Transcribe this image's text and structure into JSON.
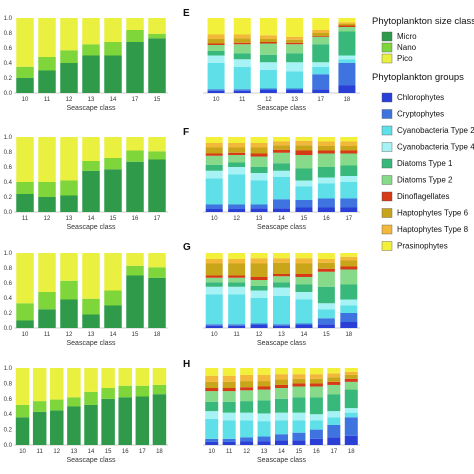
{
  "size_legend": {
    "title": "Phytoplankton size class",
    "items": [
      {
        "name": "Micro",
        "color": "#2e9a4a"
      },
      {
        "name": "Nano",
        "color": "#7fd63a"
      },
      {
        "name": "Pico",
        "color": "#eaf040"
      }
    ]
  },
  "group_legend": {
    "title": "Phytoplankton groups",
    "items": [
      {
        "name": "Chlorophytes",
        "color": "#2a3fd6"
      },
      {
        "name": "Cryptophytes",
        "color": "#3f73e0"
      },
      {
        "name": "Cyanobacteria Type 2",
        "color": "#5fe0e8"
      },
      {
        "name": "Cyanobacteria Type 4",
        "color": "#a6f2f4"
      },
      {
        "name": "Diatoms Type 1",
        "color": "#38b87a"
      },
      {
        "name": "Diatoms Type 2",
        "color": "#86da8a"
      },
      {
        "name": "Dinoflagellates",
        "color": "#d63a17"
      },
      {
        "name": "Haptophytes Type 6",
        "color": "#c9a51a"
      },
      {
        "name": "Haptophytes Type 8",
        "color": "#f2b83a"
      },
      {
        "name": "Prasinophytes",
        "color": "#f2f03a"
      }
    ]
  },
  "chart_data": [
    {
      "type": "bar",
      "stacked": true,
      "panel": "",
      "categories": [
        "10",
        "11",
        "12",
        "13",
        "14",
        "17",
        "15"
      ],
      "xlabel": "Seascape class",
      "ylim": [
        0,
        1
      ],
      "yticks": [
        "0.0",
        "0.2",
        "0.4",
        "0.6",
        "0.8",
        "1.0"
      ],
      "series": [
        {
          "name": "Micro",
          "values": [
            0.2,
            0.3,
            0.4,
            0.5,
            0.5,
            0.68,
            0.73
          ]
        },
        {
          "name": "Nano",
          "values": [
            0.15,
            0.18,
            0.17,
            0.15,
            0.18,
            0.16,
            0.06
          ]
        },
        {
          "name": "Pico",
          "values": [
            0.65,
            0.52,
            0.43,
            0.35,
            0.32,
            0.16,
            0.21
          ]
        }
      ]
    },
    {
      "type": "bar",
      "stacked": true,
      "panel": "",
      "categories": [
        "11",
        "12",
        "13",
        "14",
        "15",
        "16",
        "17"
      ],
      "xlabel": "Seascape class",
      "ylim": [
        0,
        1
      ],
      "yticks": [
        "0.0",
        "0.2",
        "0.4",
        "0.6",
        "0.8",
        "1.0"
      ],
      "series": [
        {
          "name": "Micro",
          "values": [
            0.24,
            0.2,
            0.22,
            0.55,
            0.57,
            0.67,
            0.7
          ]
        },
        {
          "name": "Nano",
          "values": [
            0.16,
            0.2,
            0.2,
            0.13,
            0.15,
            0.15,
            0.11
          ]
        },
        {
          "name": "Pico",
          "values": [
            0.6,
            0.6,
            0.58,
            0.32,
            0.28,
            0.18,
            0.19
          ]
        }
      ]
    },
    {
      "type": "bar",
      "stacked": true,
      "panel": "",
      "categories": [
        "10",
        "11",
        "12",
        "13",
        "14",
        "15",
        "18"
      ],
      "xlabel": "Seascape class",
      "ylim": [
        0,
        1
      ],
      "yticks": [
        "0.0",
        "0.2",
        "0.4",
        "0.6",
        "0.8",
        "1.0"
      ],
      "series": [
        {
          "name": "Micro",
          "values": [
            0.1,
            0.25,
            0.38,
            0.18,
            0.3,
            0.7,
            0.67
          ]
        },
        {
          "name": "Nano",
          "values": [
            0.23,
            0.23,
            0.25,
            0.21,
            0.2,
            0.13,
            0.14
          ]
        },
        {
          "name": "Pico",
          "values": [
            0.67,
            0.52,
            0.37,
            0.61,
            0.5,
            0.17,
            0.19
          ]
        }
      ]
    },
    {
      "type": "bar",
      "stacked": true,
      "panel": "",
      "categories": [
        "10",
        "11",
        "12",
        "13",
        "14",
        "15",
        "16",
        "17",
        "18"
      ],
      "xlabel": "Seascape class",
      "ylim": [
        0,
        1
      ],
      "yticks": [
        "0.0",
        "0.2",
        "0.4",
        "0.6",
        "0.8",
        "1.0"
      ],
      "series": [
        {
          "name": "Micro",
          "values": [
            0.36,
            0.43,
            0.45,
            0.5,
            0.52,
            0.6,
            0.62,
            0.63,
            0.66
          ]
        },
        {
          "name": "Nano",
          "values": [
            0.16,
            0.14,
            0.14,
            0.12,
            0.17,
            0.14,
            0.15,
            0.14,
            0.12
          ]
        },
        {
          "name": "Pico",
          "values": [
            0.48,
            0.43,
            0.41,
            0.38,
            0.31,
            0.26,
            0.23,
            0.23,
            0.22
          ]
        }
      ]
    },
    {
      "type": "bar",
      "stacked": true,
      "panel": "E",
      "categories": [
        "10",
        "11",
        "12",
        "13",
        "17",
        "18"
      ],
      "xlabel": "Seascape class",
      "ylim": [
        0,
        1
      ],
      "yticks": [],
      "series": [
        {
          "name": "Chlorophytes",
          "values": [
            0.03,
            0.03,
            0.04,
            0.04,
            0.05,
            0.1
          ]
        },
        {
          "name": "Cryptophytes",
          "values": [
            0.02,
            0.02,
            0.02,
            0.02,
            0.2,
            0.3
          ]
        },
        {
          "name": "Cyanobacteria Type 2",
          "values": [
            0.35,
            0.3,
            0.25,
            0.23,
            0.1,
            0.05
          ]
        },
        {
          "name": "Cyanobacteria Type 4",
          "values": [
            0.1,
            0.1,
            0.1,
            0.12,
            0.06,
            0.05
          ]
        },
        {
          "name": "Diatoms Type 1",
          "values": [
            0.06,
            0.08,
            0.1,
            0.12,
            0.24,
            0.32
          ]
        },
        {
          "name": "Diatoms Type 2",
          "values": [
            0.08,
            0.12,
            0.15,
            0.12,
            0.1,
            0.06
          ]
        },
        {
          "name": "Dinoflagellates",
          "values": [
            0.02,
            0.02,
            0.02,
            0.02,
            0.01,
            0.02
          ]
        },
        {
          "name": "Haptophytes Type 6",
          "values": [
            0.06,
            0.06,
            0.04,
            0.04,
            0.04,
            0.02
          ]
        },
        {
          "name": "Haptophytes Type 8",
          "values": [
            0.06,
            0.05,
            0.05,
            0.04,
            0.04,
            0.02
          ]
        },
        {
          "name": "Prasinophytes",
          "values": [
            0.22,
            0.22,
            0.23,
            0.25,
            0.16,
            0.06
          ]
        }
      ]
    },
    {
      "type": "bar",
      "stacked": true,
      "panel": "F",
      "categories": [
        "10",
        "12",
        "13",
        "14",
        "15",
        "16",
        "17"
      ],
      "xlabel": "Seascape class",
      "ylim": [
        0,
        1
      ],
      "yticks": [],
      "series": [
        {
          "name": "Chlorophytes",
          "values": [
            0.04,
            0.04,
            0.05,
            0.05,
            0.06,
            0.06,
            0.06
          ]
        },
        {
          "name": "Cryptophytes",
          "values": [
            0.06,
            0.06,
            0.05,
            0.12,
            0.1,
            0.12,
            0.12
          ]
        },
        {
          "name": "Cyanobacteria Type 2",
          "values": [
            0.35,
            0.4,
            0.32,
            0.3,
            0.18,
            0.2,
            0.22
          ]
        },
        {
          "name": "Cyanobacteria Type 4",
          "values": [
            0.1,
            0.1,
            0.1,
            0.08,
            0.08,
            0.08,
            0.08
          ]
        },
        {
          "name": "Diatoms Type 1",
          "values": [
            0.08,
            0.06,
            0.08,
            0.1,
            0.16,
            0.14,
            0.14
          ]
        },
        {
          "name": "Diatoms Type 2",
          "values": [
            0.12,
            0.1,
            0.14,
            0.14,
            0.18,
            0.18,
            0.16
          ]
        },
        {
          "name": "Dinoflagellates",
          "values": [
            0.03,
            0.03,
            0.04,
            0.04,
            0.06,
            0.04,
            0.04
          ]
        },
        {
          "name": "Haptophytes Type 6",
          "values": [
            0.08,
            0.07,
            0.08,
            0.06,
            0.07,
            0.06,
            0.06
          ]
        },
        {
          "name": "Haptophytes Type 8",
          "values": [
            0.06,
            0.06,
            0.06,
            0.05,
            0.06,
            0.06,
            0.06
          ]
        },
        {
          "name": "Prasinophytes",
          "values": [
            0.08,
            0.08,
            0.08,
            0.06,
            0.05,
            0.06,
            0.06
          ]
        }
      ]
    },
    {
      "type": "bar",
      "stacked": true,
      "panel": "G",
      "categories": [
        "10",
        "11",
        "12",
        "13",
        "14",
        "15",
        "18"
      ],
      "xlabel": "Seascape class",
      "ylim": [
        0,
        1
      ],
      "yticks": [],
      "series": [
        {
          "name": "Chlorophytes",
          "values": [
            0.03,
            0.03,
            0.04,
            0.03,
            0.04,
            0.05,
            0.08
          ]
        },
        {
          "name": "Cryptophytes",
          "values": [
            0.02,
            0.02,
            0.02,
            0.02,
            0.02,
            0.08,
            0.12
          ]
        },
        {
          "name": "Cyanobacteria Type 2",
          "values": [
            0.4,
            0.4,
            0.34,
            0.38,
            0.32,
            0.12,
            0.1
          ]
        },
        {
          "name": "Cyanobacteria Type 4",
          "values": [
            0.1,
            0.1,
            0.1,
            0.11,
            0.1,
            0.08,
            0.08
          ]
        },
        {
          "name": "Diatoms Type 1",
          "values": [
            0.06,
            0.06,
            0.06,
            0.07,
            0.1,
            0.22,
            0.2
          ]
        },
        {
          "name": "Diatoms Type 2",
          "values": [
            0.06,
            0.06,
            0.08,
            0.08,
            0.1,
            0.2,
            0.2
          ]
        },
        {
          "name": "Dinoflagellates",
          "values": [
            0.03,
            0.03,
            0.04,
            0.03,
            0.04,
            0.04,
            0.04
          ]
        },
        {
          "name": "Haptophytes Type 6",
          "values": [
            0.16,
            0.16,
            0.18,
            0.15,
            0.14,
            0.08,
            0.08
          ]
        },
        {
          "name": "Haptophytes Type 8",
          "values": [
            0.06,
            0.06,
            0.07,
            0.06,
            0.07,
            0.05,
            0.05
          ]
        },
        {
          "name": "Prasinophytes",
          "values": [
            0.08,
            0.08,
            0.07,
            0.07,
            0.07,
            0.08,
            0.05
          ]
        }
      ]
    },
    {
      "type": "bar",
      "stacked": true,
      "panel": "H",
      "categories": [
        "10",
        "11",
        "12",
        "13",
        "14",
        "15",
        "16",
        "17",
        "18"
      ],
      "xlabel": "Seascape class",
      "ylim": [
        0,
        1
      ],
      "yticks": [],
      "series": [
        {
          "name": "Chlorophytes",
          "values": [
            0.04,
            0.04,
            0.05,
            0.05,
            0.06,
            0.06,
            0.08,
            0.1,
            0.12
          ]
        },
        {
          "name": "Cryptophytes",
          "values": [
            0.04,
            0.04,
            0.05,
            0.06,
            0.08,
            0.1,
            0.12,
            0.16,
            0.24
          ]
        },
        {
          "name": "Cyanobacteria Type 2",
          "values": [
            0.26,
            0.24,
            0.22,
            0.2,
            0.18,
            0.16,
            0.12,
            0.1,
            0.06
          ]
        },
        {
          "name": "Cyanobacteria Type 4",
          "values": [
            0.1,
            0.1,
            0.1,
            0.1,
            0.1,
            0.1,
            0.08,
            0.08,
            0.06
          ]
        },
        {
          "name": "Diatoms Type 1",
          "values": [
            0.12,
            0.14,
            0.15,
            0.17,
            0.18,
            0.2,
            0.22,
            0.22,
            0.24
          ]
        },
        {
          "name": "Diatoms Type 2",
          "values": [
            0.14,
            0.14,
            0.14,
            0.14,
            0.14,
            0.14,
            0.14,
            0.12,
            0.1
          ]
        },
        {
          "name": "Dinoflagellates",
          "values": [
            0.04,
            0.04,
            0.04,
            0.04,
            0.04,
            0.04,
            0.04,
            0.04,
            0.04
          ]
        },
        {
          "name": "Haptophytes Type 6",
          "values": [
            0.08,
            0.08,
            0.08,
            0.07,
            0.07,
            0.06,
            0.06,
            0.06,
            0.05
          ]
        },
        {
          "name": "Haptophytes Type 8",
          "values": [
            0.08,
            0.08,
            0.08,
            0.08,
            0.07,
            0.06,
            0.06,
            0.05,
            0.04
          ]
        },
        {
          "name": "Prasinophytes",
          "values": [
            0.1,
            0.1,
            0.09,
            0.09,
            0.08,
            0.08,
            0.08,
            0.07,
            0.05
          ]
        }
      ]
    }
  ]
}
